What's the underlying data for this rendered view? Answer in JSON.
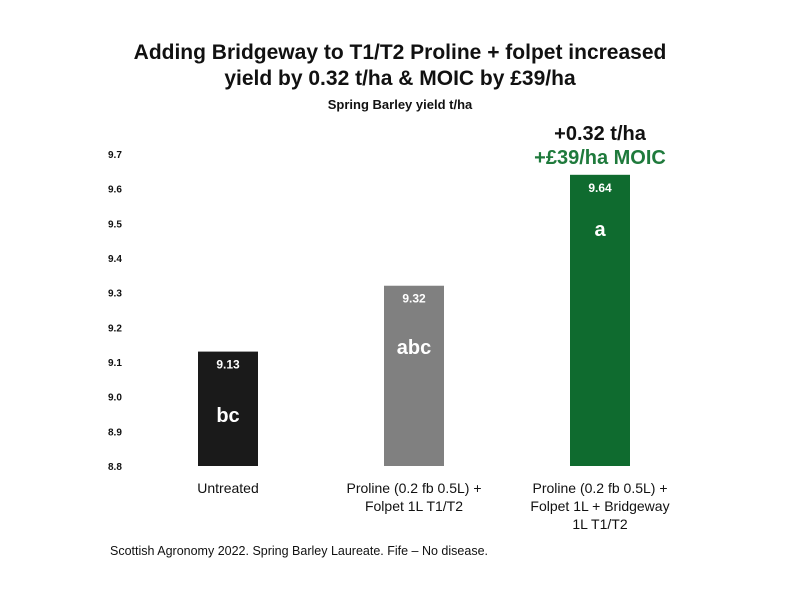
{
  "chart_data": {
    "type": "bar",
    "title": "Adding Bridgeway to T1/T2 Proline + folpet increased yield by 0.32 t/ha & MOIC by £39/ha",
    "title_lines": [
      "Adding Bridgeway to T1/T2 Proline + folpet increased",
      "yield by 0.32 t/ha & MOIC by £39/ha"
    ],
    "subtitle": "Spring Barley yield t/ha",
    "ylim": [
      8.8,
      9.7
    ],
    "yticks": [
      "8.8",
      "8.9",
      "9.0",
      "9.1",
      "9.2",
      "9.3",
      "9.4",
      "9.5",
      "9.6",
      "9.7"
    ],
    "grid": false,
    "categories": [
      [
        "Untreated"
      ],
      [
        "Proline  (0.2 fb 0.5L) +",
        "Folpet 1L T1/T2"
      ],
      [
        "Proline  (0.2 fb 0.5L) +",
        "Folpet 1L + Bridgeway",
        "1L  T1/T2"
      ]
    ],
    "values": [
      9.13,
      9.32,
      9.64
    ],
    "value_labels": [
      "9.13",
      "9.32",
      "9.64"
    ],
    "significance": [
      "bc",
      "abc",
      "a"
    ],
    "colors": [
      "#1a1a1a",
      "#808080",
      "#0f6b2f"
    ],
    "annotations": [
      "+0.32 t/ha",
      "+£39/ha MOIC"
    ],
    "annotation_colors": [
      "#111111",
      "#1f7a3c"
    ]
  },
  "footnote": "Scottish Agronomy 2022.  Spring Barley Laureate. Fife – No disease."
}
